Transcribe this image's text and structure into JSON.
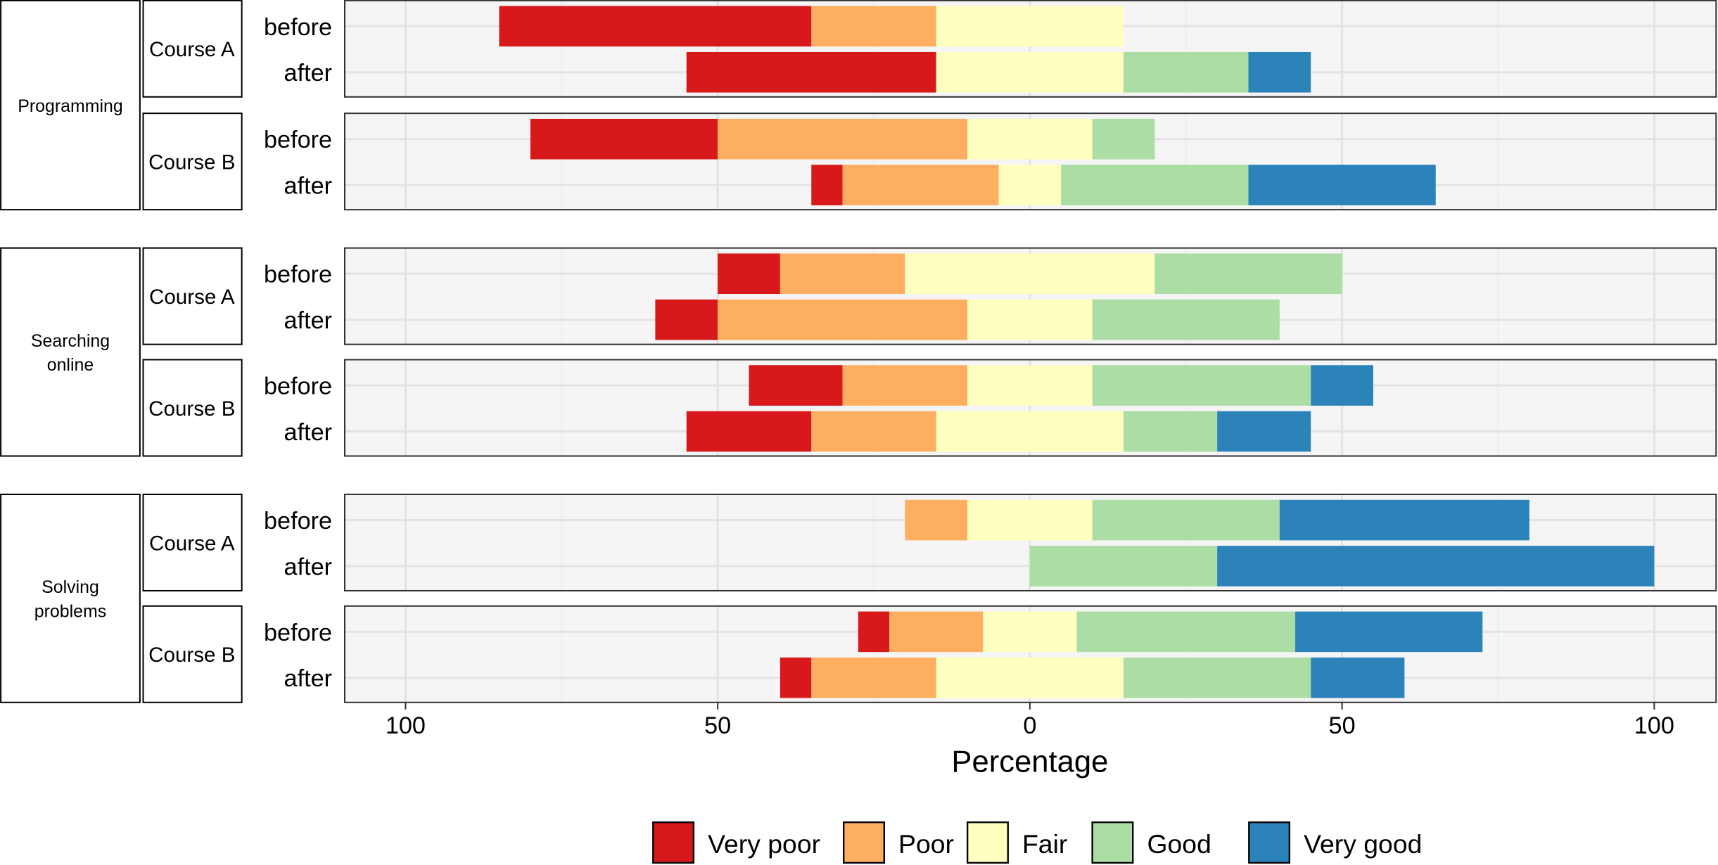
{
  "chart_data": {
    "type": "bar",
    "orientation": "horizontal",
    "stacking": "diverging",
    "xlabel": "Percentage",
    "xlim": [
      -110,
      110
    ],
    "x_ticks": [
      -100,
      -50,
      0,
      50,
      100
    ],
    "x_tick_labels": [
      "100",
      "50",
      "0",
      "50",
      "100"
    ],
    "grid": true,
    "legend_position": "bottom",
    "categories_legend": [
      "Very poor",
      "Poor",
      "Fair",
      "Good",
      "Very good"
    ],
    "colors": [
      "#d7191c",
      "#fdae61",
      "#ffffbf",
      "#abdda4",
      "#2b83ba"
    ],
    "groups": [
      {
        "label": "Programming",
        "courses": [
          {
            "label": "Course A",
            "rows": [
              {
                "label": "before",
                "values": [
                  50,
                  20,
                  30,
                  0,
                  0
                ]
              },
              {
                "label": "after",
                "values": [
                  40,
                  0,
                  30,
                  20,
                  10
                ]
              }
            ]
          },
          {
            "label": "Course B",
            "rows": [
              {
                "label": "before",
                "values": [
                  30,
                  40,
                  20,
                  10,
                  0
                ]
              },
              {
                "label": "after",
                "values": [
                  5,
                  25,
                  10,
                  30,
                  30
                ]
              }
            ]
          }
        ]
      },
      {
        "label": "Searching online",
        "courses": [
          {
            "label": "Course A",
            "rows": [
              {
                "label": "before",
                "values": [
                  10,
                  20,
                  40,
                  30,
                  0
                ]
              },
              {
                "label": "after",
                "values": [
                  10,
                  40,
                  20,
                  30,
                  0
                ]
              }
            ]
          },
          {
            "label": "Course B",
            "rows": [
              {
                "label": "before",
                "values": [
                  15,
                  20,
                  20,
                  35,
                  10
                ]
              },
              {
                "label": "after",
                "values": [
                  20,
                  20,
                  30,
                  15,
                  15
                ]
              }
            ]
          }
        ]
      },
      {
        "label": "Solving problems",
        "courses": [
          {
            "label": "Course A",
            "rows": [
              {
                "label": "before",
                "values": [
                  0,
                  10,
                  20,
                  30,
                  40
                ]
              },
              {
                "label": "after",
                "values": [
                  0,
                  0,
                  0,
                  30,
                  70
                ]
              }
            ]
          },
          {
            "label": "Course B",
            "rows": [
              {
                "label": "before",
                "values": [
                  5,
                  15,
                  15,
                  35,
                  30
                ]
              },
              {
                "label": "after",
                "values": [
                  5,
                  20,
                  30,
                  30,
                  15
                ]
              }
            ]
          }
        ]
      }
    ]
  }
}
